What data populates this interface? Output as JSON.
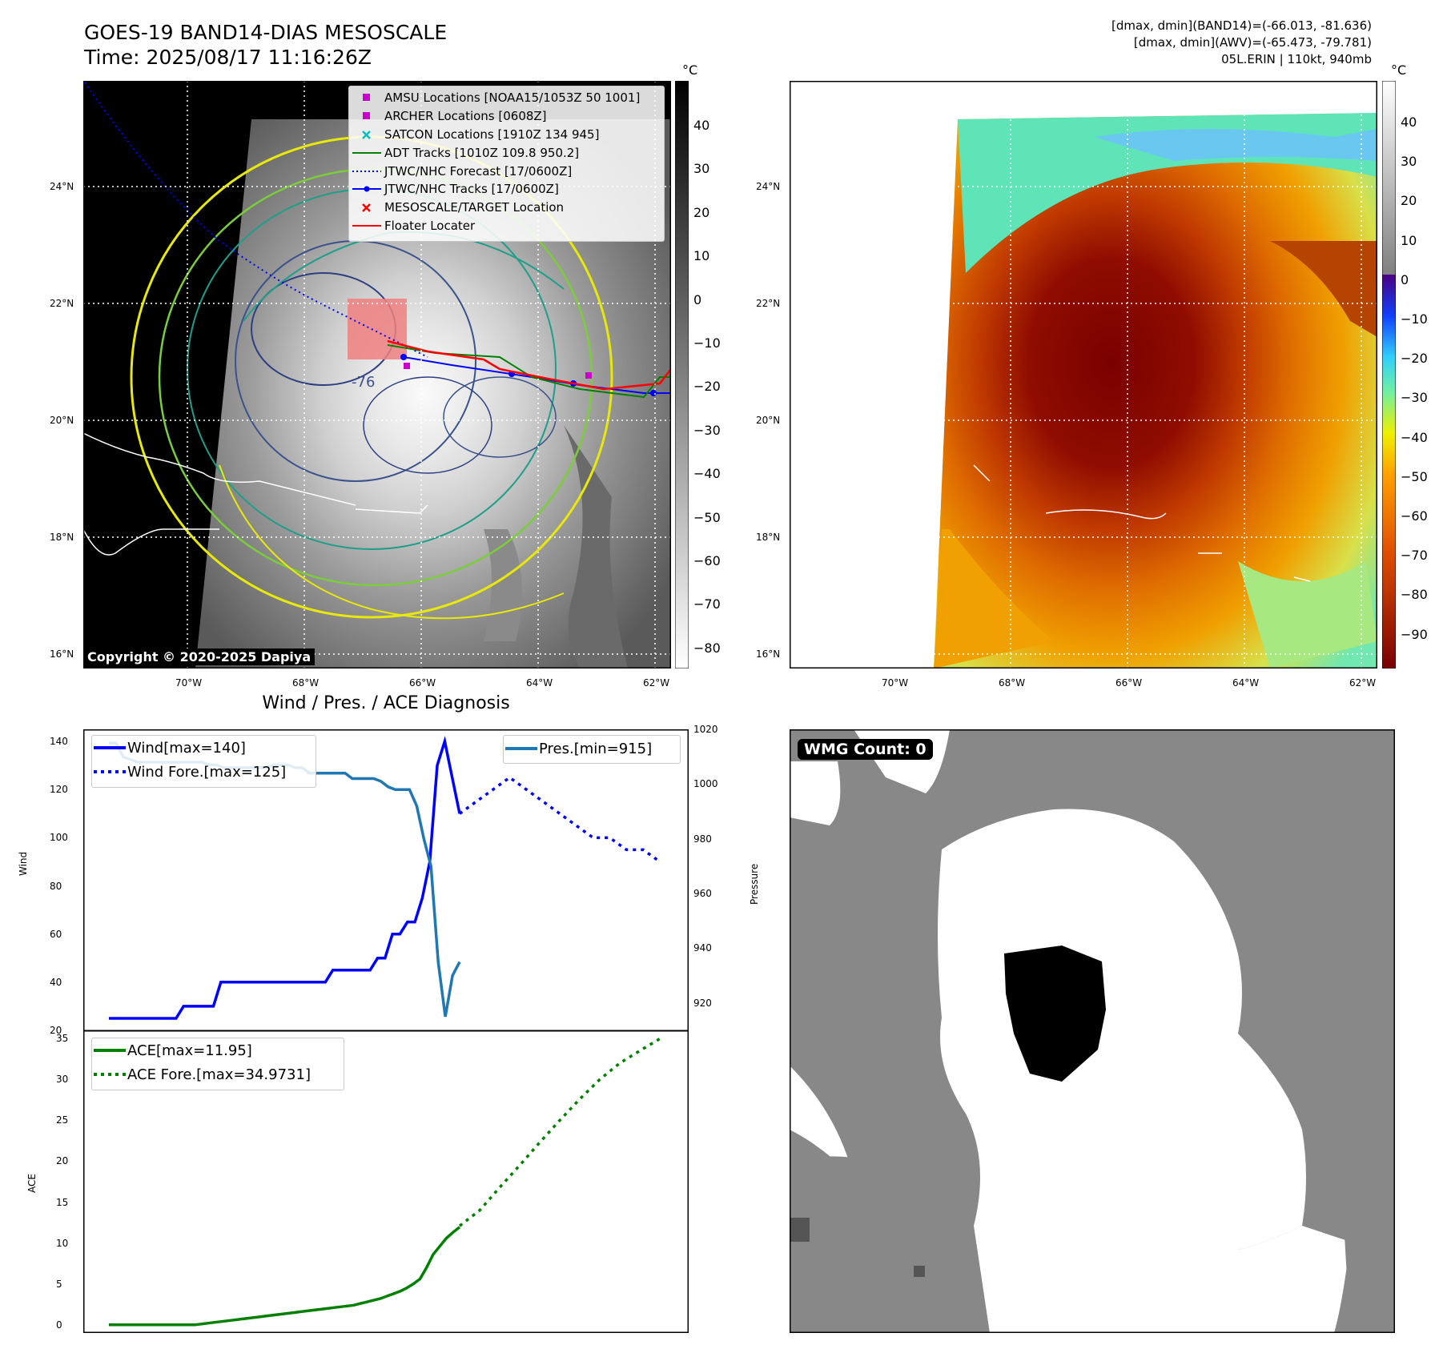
{
  "header": {
    "title": "GOES-19 BAND14-DIAS MESOSCALE",
    "time": "Time: 2025/08/17 11:16:26Z",
    "stats_line1": "[dmax, dmin](BAND14)=(-66.013, -81.636)",
    "stats_line2": "[dmax, dmin](AWV)=(-65.473, -79.781)",
    "storm": "05L.ERIN | 110kt, 940mb",
    "copyright": "Copyright © 2020-2025 Dapiya"
  },
  "map": {
    "lat_labels": [
      "24°N",
      "22°N",
      "20°N",
      "18°N",
      "16°N"
    ],
    "lon_labels": [
      "70°W",
      "68°W",
      "66°W",
      "64°W",
      "62°W"
    ],
    "contour_label": "-76",
    "legend": [
      {
        "label": "AMSU Locations [NOAA15/1053Z 50 1001]",
        "marker": "square",
        "color": "#cc00cc"
      },
      {
        "label": "ARCHER Locations [0608Z]",
        "marker": "square",
        "color": "#cc00cc"
      },
      {
        "label": "SATCON Locations [1910Z 134 945]",
        "marker": "x",
        "color": "#00bfbf"
      },
      {
        "label": "ADT Tracks [1010Z 109.8 950.2]",
        "marker": "line",
        "color": "#008000"
      },
      {
        "label": "JTWC/NHC Forecast [17/0600Z]",
        "marker": "dotted",
        "color": "#0000ff"
      },
      {
        "label": "JTWC/NHC Tracks [17/0600Z]",
        "marker": "line-dot",
        "color": "#0000ff"
      },
      {
        "label": "MESOSCALE/TARGET Location",
        "marker": "x",
        "color": "#ff0000"
      },
      {
        "label": "Floater Locater",
        "marker": "line",
        "color": "#ff0000"
      }
    ]
  },
  "colorbars": {
    "unit": "°C",
    "gray_ticks": [
      "40",
      "30",
      "20",
      "10",
      "0",
      "−10",
      "−20",
      "−30",
      "−40",
      "−50",
      "−60",
      "−70",
      "−80"
    ],
    "color_ticks": [
      "40",
      "30",
      "20",
      "10",
      "0",
      "−10",
      "−20",
      "−30",
      "−40",
      "−50",
      "−60",
      "−70",
      "−80",
      "−90"
    ]
  },
  "wmg": {
    "label": "WMG Count: 0"
  },
  "chart_data": [
    {
      "type": "line",
      "title": "Wind / Pres. / ACE Diagnosis",
      "ylabel": "Wind",
      "ylabel_right": "Pressure",
      "ylim": [
        20,
        145
      ],
      "ylim_right": [
        910,
        1020
      ],
      "yticks": [
        "20",
        "40",
        "60",
        "80",
        "100",
        "120",
        "140"
      ],
      "yticks_right": [
        "920",
        "940",
        "960",
        "980",
        "1000",
        "1020"
      ],
      "series": [
        {
          "name": "Wind[max=140]",
          "axis": "left",
          "style": "solid",
          "color": "#0000ff",
          "values": [
            25,
            25,
            25,
            25,
            25,
            25,
            25,
            25,
            25,
            25,
            30,
            30,
            30,
            30,
            30,
            40,
            40,
            40,
            40,
            40,
            40,
            40,
            40,
            40,
            40,
            40,
            40,
            40,
            40,
            40,
            45,
            45,
            45,
            45,
            45,
            45,
            50,
            50,
            60,
            60,
            65,
            65,
            75,
            90,
            130,
            140,
            125,
            110
          ]
        },
        {
          "name": "Wind Fore.[max=125]",
          "axis": "left",
          "style": "dotted",
          "color": "#0000ff",
          "values": [
            110,
            115,
            120,
            125,
            120,
            115,
            110,
            105,
            100,
            100,
            95,
            95,
            90
          ]
        },
        {
          "name": "Pres.[min=915]",
          "axis": "right",
          "style": "solid",
          "color": "#1f77b4",
          "values": [
            1015,
            1015,
            1010,
            1009,
            1008,
            1008,
            1008,
            1008,
            1008,
            1008,
            1008,
            1008,
            1008,
            1008,
            1007,
            1007,
            1006,
            1006,
            1006,
            1006,
            1006,
            1006,
            1006,
            1007,
            1007,
            1007,
            1006,
            1006,
            1004,
            1004,
            1004,
            1004,
            1004,
            1004,
            1002,
            1002,
            1002,
            1002,
            1001,
            999,
            998,
            998,
            998,
            992,
            980,
            970,
            935,
            915,
            930,
            935
          ]
        }
      ]
    },
    {
      "type": "line",
      "ylabel": "ACE",
      "ylim": [
        -1,
        36
      ],
      "yticks": [
        "0",
        "5",
        "10",
        "15",
        "20",
        "25",
        "30",
        "35"
      ],
      "series": [
        {
          "name": "ACE[max=11.95]",
          "style": "solid",
          "color": "#008000",
          "values": [
            0,
            0,
            0,
            0,
            0,
            0,
            0,
            0,
            0,
            0,
            0,
            0,
            0,
            0,
            0.1,
            0.2,
            0.3,
            0.4,
            0.5,
            0.6,
            0.7,
            0.8,
            0.9,
            1.0,
            1.1,
            1.2,
            1.3,
            1.4,
            1.5,
            1.6,
            1.7,
            1.8,
            1.9,
            2.0,
            2.1,
            2.2,
            2.3,
            2.4,
            2.6,
            2.8,
            3.0,
            3.2,
            3.5,
            3.8,
            4.1,
            4.5,
            5.0,
            5.6,
            7.0,
            8.6,
            9.6,
            10.6,
            11.3,
            11.95
          ]
        },
        {
          "name": "ACE Fore.[max=34.9731]",
          "style": "dotted",
          "color": "#008000",
          "values": [
            12.1,
            14.0,
            16.8,
            19.5,
            22.3,
            25.0,
            27.6,
            30.0,
            32.0,
            33.5,
            34.97
          ]
        }
      ]
    }
  ]
}
